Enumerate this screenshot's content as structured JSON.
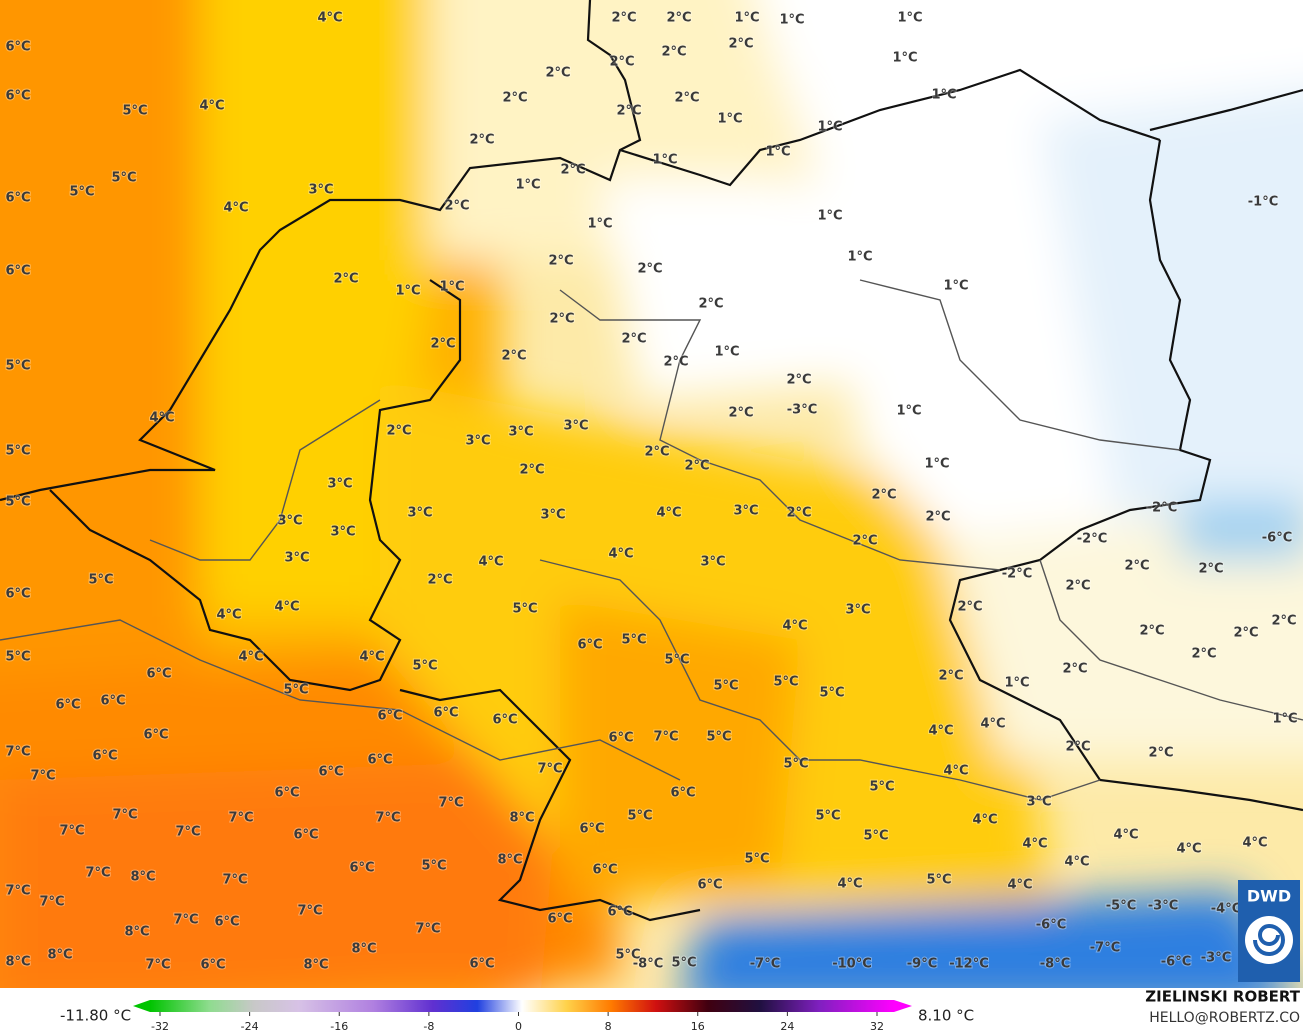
{
  "labels": [
    "4°C",
    "6°C",
    "6°C",
    "5°C",
    "4°C",
    "6°C",
    "5°C",
    "5°C",
    "4°C",
    "3°C",
    "6°C",
    "5°C",
    "4°C",
    "5°C",
    "5°C",
    "2°C",
    "2°C",
    "1°C",
    "1°C",
    "1°C",
    "2°C",
    "2°C",
    "2°C",
    "2°C",
    "2°C",
    "2°C",
    "1°C",
    "2°C",
    "1°C",
    "1°C",
    "1°C",
    "2°C",
    "1°C",
    "1°C",
    "2°C",
    "1°C",
    "2°C",
    "1°C",
    "1°C",
    "-1°C",
    "2°C",
    "2°C",
    "1°C",
    "2°C",
    "1°C",
    "1°C",
    "1°C",
    "2°C",
    "2°C",
    "2°C",
    "2°C",
    "2°C",
    "1°C",
    "2°C",
    "2°C",
    "-3°C",
    "2°C",
    "1°C",
    "2°C",
    "3°C",
    "3°C",
    "3°C",
    "2°C",
    "2°C",
    "2°C",
    "1°C",
    "3°C",
    "3°C",
    "3°C",
    "4°C",
    "3°C",
    "2°C",
    "2°C",
    "2°C",
    "-2°C",
    "-6°C",
    "3°C",
    "3°C",
    "-2°C",
    "2°C",
    "3°C",
    "4°C",
    "4°C",
    "3°C",
    "2°C",
    "2°C",
    "-2°C",
    "5°C",
    "2°C",
    "2°C",
    "6°C",
    "4°C",
    "4°C",
    "5°C",
    "3°C",
    "2°C",
    "4°C",
    "2°C",
    "2°C",
    "2°C",
    "6°C",
    "5°C",
    "4°C",
    "4°C",
    "5°C",
    "6°C",
    "5°C",
    "5°C",
    "2°C",
    "2°C",
    "2°C",
    "1°C",
    "6°C",
    "6°C",
    "5°C",
    "5°C",
    "5°C",
    "5°C",
    "1°C",
    "6°C",
    "6°C",
    "6°C",
    "4°C",
    "4°C",
    "6°C",
    "6°C",
    "7°C",
    "5°C",
    "2°C",
    "2°C",
    "7°C",
    "6°C",
    "7°C",
    "6°C",
    "6°C",
    "7°C",
    "5°C",
    "4°C",
    "6°C",
    "6°C",
    "5°C",
    "7°C",
    "3°C",
    "7°C",
    "7°C",
    "7°C",
    "8°C",
    "5°C",
    "5°C",
    "4°C",
    "7°C",
    "7°C",
    "6°C",
    "6°C",
    "5°C",
    "4°C",
    "4°C",
    "4°C",
    "4°C",
    "8°C",
    "5°C",
    "6°C",
    "5°C",
    "4°C",
    "7°C",
    "8°C",
    "7°C",
    "6°C",
    "6°C",
    "4°C",
    "5°C",
    "4°C",
    "7°C",
    "7°C",
    "7°C",
    "-5°C",
    "-3°C",
    "-4°C",
    "6°C",
    "-6°C",
    "7°C",
    "6°C",
    "7°C",
    "6°C",
    "8°C",
    "8°C",
    "8°C",
    "5°C",
    "-7°C",
    "-6°C",
    "-3°C",
    "8°C",
    "7°C",
    "6°C",
    "8°C",
    "6°C",
    "-8°C",
    "5°C",
    "-7°C",
    "-10°C",
    "-9°C",
    "-12°C",
    "-8°C"
  ],
  "legend": {
    "min_label": "-11.80 °C",
    "max_label": "8.10 °C",
    "lim": [
      -32,
      32
    ],
    "ticks": [
      -32,
      -24,
      -16,
      -8,
      0,
      8,
      16,
      24,
      32
    ]
  },
  "credit": {
    "name": "ZIELINSKI ROBERT",
    "email": "HELLO@ROBERTZ.CO"
  },
  "logo": "DWD"
}
